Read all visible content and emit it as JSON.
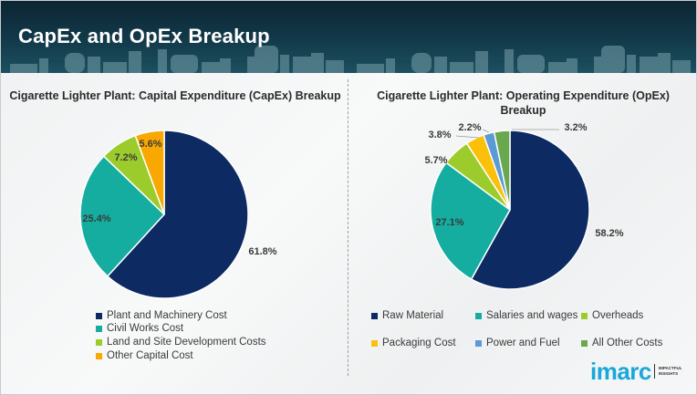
{
  "header": {
    "title": "CapEx and OpEx Breakup"
  },
  "logo": {
    "brand": "imarc",
    "tagline_line1": "IMPACTFUL",
    "tagline_line2": "INSIGHTS",
    "color": "#1aa7d9"
  },
  "chart_data": [
    {
      "type": "pie",
      "title": "Cigarette Lighter Plant: Capital Expenditure (CapEx) Breakup",
      "start_angle": "12 o'clock, clockwise",
      "legend_position": "bottom",
      "slices": [
        {
          "label": "Plant and Machinery Cost",
          "value": 61.8,
          "display": "61.8%",
          "color": "#0d2a63"
        },
        {
          "label": "Civil Works Cost",
          "value": 25.4,
          "display": "25.4%",
          "color": "#14ada0"
        },
        {
          "label": "Land and Site Development Costs",
          "value": 7.2,
          "display": "7.2%",
          "color": "#9ccc2c"
        },
        {
          "label": "Other Capital Cost",
          "value": 5.6,
          "display": "5.6%",
          "color": "#f8a800"
        }
      ]
    },
    {
      "type": "pie",
      "title": "Cigarette Lighter Plant: Operating Expenditure (OpEx) Breakup",
      "title_line1": "Cigarette Lighter Plant: Operating Expenditure (OpEx)",
      "title_line2": "Breakup",
      "start_angle": "12 o'clock, clockwise",
      "legend_position": "bottom",
      "slices": [
        {
          "label": "Raw Material",
          "value": 58.2,
          "display": "58.2%",
          "color": "#0d2a63"
        },
        {
          "label": "Salaries and wages",
          "value": 27.1,
          "display": "27.1%",
          "color": "#14ada0"
        },
        {
          "label": "Overheads",
          "value": 5.7,
          "display": "5.7%",
          "color": "#9ccc2c"
        },
        {
          "label": "Packaging Cost",
          "value": 3.8,
          "display": "3.8%",
          "color": "#fbc00a"
        },
        {
          "label": "Power and Fuel",
          "value": 2.2,
          "display": "2.2%",
          "color": "#5b9bd5"
        },
        {
          "label": "All Other Costs",
          "value": 3.2,
          "display": "3.2%",
          "color": "#6aa84f"
        }
      ]
    }
  ]
}
